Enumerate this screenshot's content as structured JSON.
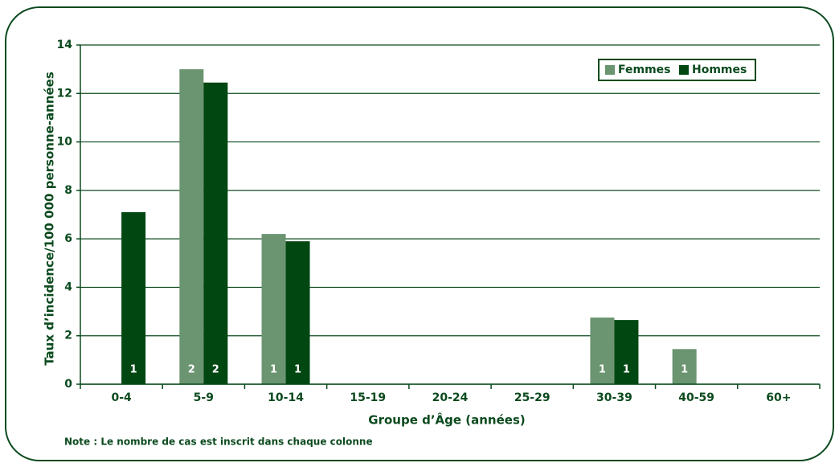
{
  "chart_data": {
    "type": "bar",
    "y_label": "Taux d’incidence/100 000 personne-années",
    "x_label": "Groupe d’Âge (années)",
    "note": "Note : Le nombre de cas est inscrit dans chaque colonne",
    "categories": [
      "0-4",
      "5-9",
      "10-14",
      "15-19",
      "20-24",
      "25-29",
      "30-39",
      "40-59",
      "60+"
    ],
    "series": [
      {
        "name": "Femmes",
        "color": "#6b9470",
        "values": [
          0,
          13,
          6.2,
          0,
          0,
          0,
          2.75,
          1.45,
          0
        ],
        "counts": [
          null,
          2,
          1,
          null,
          null,
          null,
          1,
          1,
          null
        ]
      },
      {
        "name": "Hommes",
        "color": "#004712",
        "values": [
          7.1,
          12.45,
          5.9,
          0,
          0,
          0,
          2.65,
          0,
          0
        ],
        "counts": [
          1,
          2,
          1,
          null,
          null,
          null,
          1,
          null,
          null
        ]
      }
    ],
    "ylim": [
      0,
      14
    ],
    "yticks": [
      0,
      2,
      4,
      6,
      8,
      10,
      12,
      14
    ],
    "grid": true,
    "legend": "top-right"
  }
}
